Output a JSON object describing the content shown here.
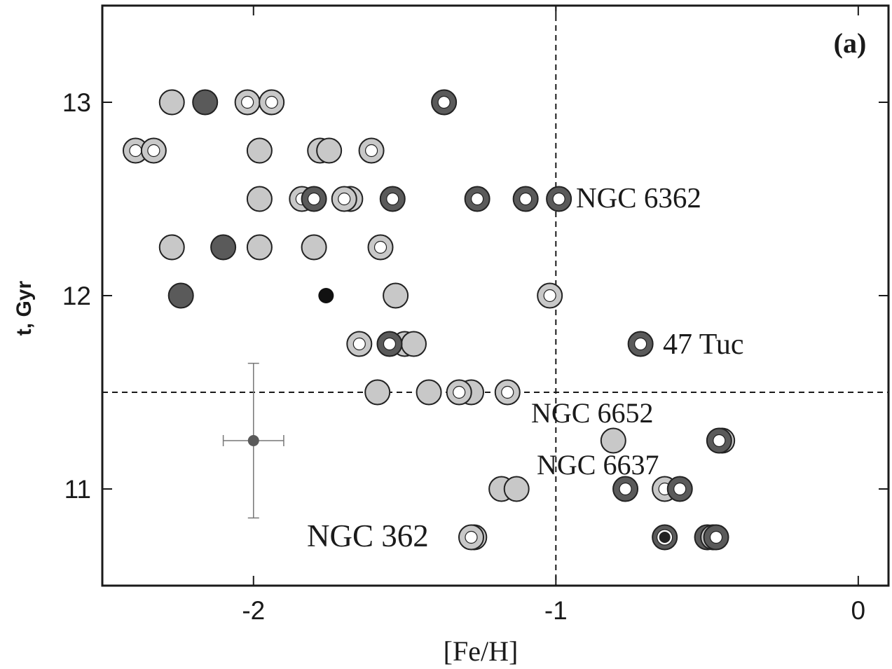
{
  "chart_data": {
    "type": "scatter",
    "panel_label": "(a)",
    "xlabel": "[Fe/H]",
    "ylabel": "t, Gyr",
    "xlim": [
      -2.5,
      0.1
    ],
    "ylim": [
      10.5,
      13.5
    ],
    "xticks": [
      -2,
      -1,
      0
    ],
    "xtick_labels": [
      "-2",
      "-1",
      "0"
    ],
    "yticks": [
      11,
      12,
      13
    ],
    "ytick_labels": [
      "11",
      "12",
      "13"
    ],
    "grid": false,
    "reference_lines": {
      "x": -1.0,
      "y": 11.5
    },
    "colors": {
      "light": "#c8c8c8",
      "dark": "#5a5a5a",
      "black": "#111111",
      "hollow_center": "#ffffff",
      "outline": "#222222",
      "error_bar": "#777777",
      "error_point": "#5a5a5a"
    },
    "marker_styles": [
      "light",
      "dark",
      "light-ring",
      "dark-ring",
      "black-small",
      "ring"
    ],
    "points": [
      {
        "x": -2.27,
        "y": 13.0,
        "style": "light"
      },
      {
        "x": -2.16,
        "y": 13.0,
        "style": "dark"
      },
      {
        "x": -2.02,
        "y": 13.0,
        "style": "light-ring"
      },
      {
        "x": -1.94,
        "y": 13.0,
        "style": "light-ring"
      },
      {
        "x": -1.37,
        "y": 13.0,
        "style": "dark-ring"
      },
      {
        "x": -2.39,
        "y": 12.75,
        "style": "light-ring"
      },
      {
        "x": -2.33,
        "y": 12.75,
        "style": "light-ring"
      },
      {
        "x": -1.98,
        "y": 12.75,
        "style": "light"
      },
      {
        "x": -1.78,
        "y": 12.75,
        "style": "light"
      },
      {
        "x": -1.75,
        "y": 12.75,
        "style": "light"
      },
      {
        "x": -1.61,
        "y": 12.75,
        "style": "light-ring"
      },
      {
        "x": -1.98,
        "y": 12.5,
        "style": "light"
      },
      {
        "x": -1.84,
        "y": 12.5,
        "style": "light-ring"
      },
      {
        "x": -1.8,
        "y": 12.5,
        "style": "dark-ring"
      },
      {
        "x": -1.68,
        "y": 12.5,
        "style": "light"
      },
      {
        "x": -1.7,
        "y": 12.5,
        "style": "light-ring"
      },
      {
        "x": -1.54,
        "y": 12.5,
        "style": "dark-ring"
      },
      {
        "x": -1.26,
        "y": 12.5,
        "style": "dark-ring"
      },
      {
        "x": -1.1,
        "y": 12.5,
        "style": "dark-ring"
      },
      {
        "x": -0.99,
        "y": 12.5,
        "style": "dark-ring"
      },
      {
        "x": -2.27,
        "y": 12.25,
        "style": "light"
      },
      {
        "x": -2.1,
        "y": 12.25,
        "style": "dark"
      },
      {
        "x": -1.98,
        "y": 12.25,
        "style": "light"
      },
      {
        "x": -1.8,
        "y": 12.25,
        "style": "light"
      },
      {
        "x": -1.58,
        "y": 12.25,
        "style": "light-ring"
      },
      {
        "x": -2.24,
        "y": 12.0,
        "style": "dark"
      },
      {
        "x": -1.76,
        "y": 12.0,
        "style": "black-small"
      },
      {
        "x": -1.53,
        "y": 12.0,
        "style": "light"
      },
      {
        "x": -1.02,
        "y": 12.0,
        "style": "light-ring"
      },
      {
        "x": -1.65,
        "y": 11.75,
        "style": "light-ring"
      },
      {
        "x": -1.5,
        "y": 11.75,
        "style": "light"
      },
      {
        "x": -1.47,
        "y": 11.75,
        "style": "light"
      },
      {
        "x": -1.55,
        "y": 11.75,
        "style": "dark-ring"
      },
      {
        "x": -0.72,
        "y": 11.75,
        "style": "dark-ring"
      },
      {
        "x": -1.59,
        "y": 11.5,
        "style": "light"
      },
      {
        "x": -1.42,
        "y": 11.5,
        "style": "light"
      },
      {
        "x": -1.28,
        "y": 11.5,
        "style": "light"
      },
      {
        "x": -1.32,
        "y": 11.5,
        "style": "light-ring"
      },
      {
        "x": -1.16,
        "y": 11.5,
        "style": "light-ring"
      },
      {
        "x": -0.81,
        "y": 11.25,
        "style": "light"
      },
      {
        "x": -0.45,
        "y": 11.25,
        "style": "light-ring"
      },
      {
        "x": -0.46,
        "y": 11.25,
        "style": "dark-ring"
      },
      {
        "x": -1.18,
        "y": 11.0,
        "style": "light"
      },
      {
        "x": -1.13,
        "y": 11.0,
        "style": "light"
      },
      {
        "x": -0.77,
        "y": 11.0,
        "style": "dark-ring"
      },
      {
        "x": -0.64,
        "y": 11.0,
        "style": "light-ring"
      },
      {
        "x": -0.59,
        "y": 11.0,
        "style": "dark-ring"
      },
      {
        "x": -1.27,
        "y": 10.75,
        "style": "light"
      },
      {
        "x": -1.28,
        "y": 10.75,
        "style": "light-ring"
      },
      {
        "x": -0.64,
        "y": 10.75,
        "style": "ring"
      },
      {
        "x": -0.5,
        "y": 10.75,
        "style": "dark-ring"
      },
      {
        "x": -0.48,
        "y": 10.75,
        "style": "light-ring"
      },
      {
        "x": -0.47,
        "y": 10.75,
        "style": "dark-ring"
      }
    ],
    "error_bar": {
      "x": -2.0,
      "y": 11.25,
      "xerr": 0.1,
      "yerr": 0.4
    },
    "annotations": [
      "NGC 6362",
      "47 Tuc",
      "NGC 6652",
      "NGC 6637",
      "NGC 362"
    ]
  }
}
